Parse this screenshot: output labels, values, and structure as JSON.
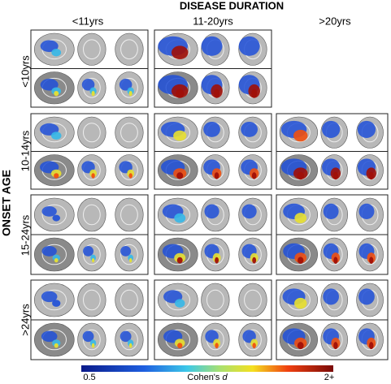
{
  "title": "DISEASE DURATION",
  "columns": [
    "<11yrs",
    "11-20yrs",
    ">20yrs"
  ],
  "row_axis_title": "ONSET AGE",
  "rows": [
    "<10yrs",
    "10-14yrs",
    "15-24yrs",
    ">24yrs"
  ],
  "colorbar": {
    "min_label": "0.5",
    "label": "Cohen's ",
    "label_italic": "d",
    "max_label": "2+"
  }
}
